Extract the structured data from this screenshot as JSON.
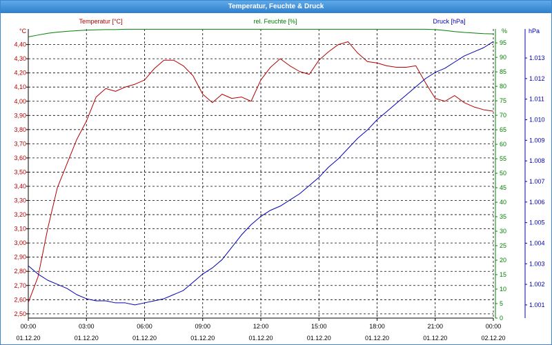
{
  "chart_data": {
    "type": "line",
    "title": "Temperatur, Feuchte & Druck",
    "grid": true,
    "legend_position": "top",
    "x": [
      "01.12.20 00:00",
      "01.12.20 00:30",
      "01.12.20 01:00",
      "01.12.20 01:30",
      "01.12.20 02:00",
      "01.12.20 02:30",
      "01.12.20 03:00",
      "01.12.20 03:30",
      "01.12.20 04:00",
      "01.12.20 04:30",
      "01.12.20 05:00",
      "01.12.20 05:30",
      "01.12.20 06:00",
      "01.12.20 06:30",
      "01.12.20 07:00",
      "01.12.20 07:30",
      "01.12.20 08:00",
      "01.12.20 08:30",
      "01.12.20 09:00",
      "01.12.20 09:30",
      "01.12.20 10:00",
      "01.12.20 10:30",
      "01.12.20 11:00",
      "01.12.20 11:30",
      "01.12.20 12:00",
      "01.12.20 12:30",
      "01.12.20 13:00",
      "01.12.20 13:30",
      "01.12.20 14:00",
      "01.12.20 14:30",
      "01.12.20 15:00",
      "01.12.20 15:30",
      "01.12.20 16:00",
      "01.12.20 16:30",
      "01.12.20 17:00",
      "01.12.20 17:30",
      "01.12.20 18:00",
      "01.12.20 18:30",
      "01.12.20 19:00",
      "01.12.20 19:30",
      "01.12.20 20:00",
      "01.12.20 20:30",
      "01.12.20 21:00",
      "01.12.20 21:30",
      "01.12.20 22:00",
      "01.12.20 22:30",
      "01.12.20 23:00",
      "01.12.20 23:30",
      "02.12.20 00:00"
    ],
    "x_ticks": {
      "times": [
        "00:00",
        "03:00",
        "06:00",
        "09:00",
        "12:00",
        "15:00",
        "18:00",
        "21:00",
        "00:00"
      ],
      "dates": [
        "01.12.20",
        "01.12.20",
        "01.12.20",
        "01.12.20",
        "01.12.20",
        "01.12.20",
        "01.12.20",
        "01.12.20",
        "02.12.20"
      ]
    },
    "y_axes": [
      {
        "unit": "°C",
        "color": "#b40000",
        "ylim": [
          2.47,
          4.51
        ],
        "ticks": [
          "2,50",
          "2,60",
          "2,70",
          "2,80",
          "2,90",
          "3,00",
          "3,10",
          "3,20",
          "3,30",
          "3,40",
          "3,50",
          "3,60",
          "3,70",
          "3,80",
          "3,90",
          "4,00",
          "4,10",
          "4,20",
          "4,30",
          "4,40"
        ]
      },
      {
        "unit": "%",
        "color": "#008000",
        "ylim": [
          0,
          99.8
        ],
        "ticks": [
          "0",
          "5",
          "10",
          "15",
          "20",
          "25",
          "30",
          "35",
          "40",
          "45",
          "50",
          "55",
          "60",
          "65",
          "70",
          "75",
          "80",
          "85",
          "90",
          "95"
        ]
      },
      {
        "unit": "hPa",
        "color": "#0000b4",
        "ylim": [
          1.00036,
          1.01441
        ],
        "ticks": [
          "1.001",
          "1.002",
          "1.003",
          "1.004",
          "1.005",
          "1.006",
          "1.007",
          "1.008",
          "1.009",
          "1.010",
          "1.011",
          "1.012",
          "1.013"
        ]
      }
    ],
    "series": [
      {
        "name": "Temperatur [°C]",
        "color": "#b40000",
        "values": [
          2.58,
          2.76,
          3.1,
          3.39,
          3.56,
          3.73,
          3.86,
          4.03,
          4.09,
          4.07,
          4.1,
          4.12,
          4.15,
          4.23,
          4.29,
          4.29,
          4.25,
          4.18,
          4.05,
          3.99,
          4.05,
          4.02,
          4.03,
          4.0,
          4.15,
          4.24,
          4.3,
          4.25,
          4.21,
          4.19,
          4.29,
          4.35,
          4.4,
          4.42,
          4.34,
          4.28,
          4.27,
          4.25,
          4.24,
          4.24,
          4.25,
          4.13,
          4.02,
          4.0,
          4.04,
          3.99,
          3.96,
          3.94,
          3.93
        ]
      },
      {
        "name": "rel. Feuchte [%]",
        "color": "#008000",
        "values": [
          97.1,
          97.7,
          98.3,
          98.7,
          99.0,
          99.2,
          99.4,
          99.5,
          99.6,
          99.6,
          99.7,
          99.7,
          99.7,
          99.7,
          99.7,
          99.7,
          99.7,
          99.7,
          99.7,
          99.7,
          99.7,
          99.7,
          99.7,
          99.7,
          99.7,
          99.7,
          99.7,
          99.7,
          99.7,
          99.7,
          99.7,
          99.7,
          99.7,
          99.7,
          99.7,
          99.7,
          99.7,
          99.7,
          99.7,
          99.7,
          99.7,
          99.7,
          99.6,
          99.3,
          98.9,
          98.6,
          98.4,
          98.2,
          98.1
        ]
      },
      {
        "name": "Druck [hPa]",
        "color": "#0000b4",
        "values": [
          1.0029,
          1.0025,
          1.0022,
          1.002,
          1.0018,
          1.0015,
          1.0013,
          1.0012,
          1.0012,
          1.0011,
          1.0011,
          1.001,
          1.0011,
          1.0012,
          1.0013,
          1.0015,
          1.0017,
          1.0021,
          1.0025,
          1.0028,
          1.0032,
          1.0038,
          1.0044,
          1.0049,
          1.0053,
          1.0056,
          1.0058,
          1.0061,
          1.0064,
          1.0068,
          1.0072,
          1.0077,
          1.0081,
          1.0086,
          1.0091,
          1.0095,
          1.01,
          1.0104,
          1.0108,
          1.0112,
          1.0116,
          1.012,
          1.0123,
          1.0125,
          1.0128,
          1.0131,
          1.0133,
          1.0135,
          1.0138
        ]
      }
    ]
  }
}
